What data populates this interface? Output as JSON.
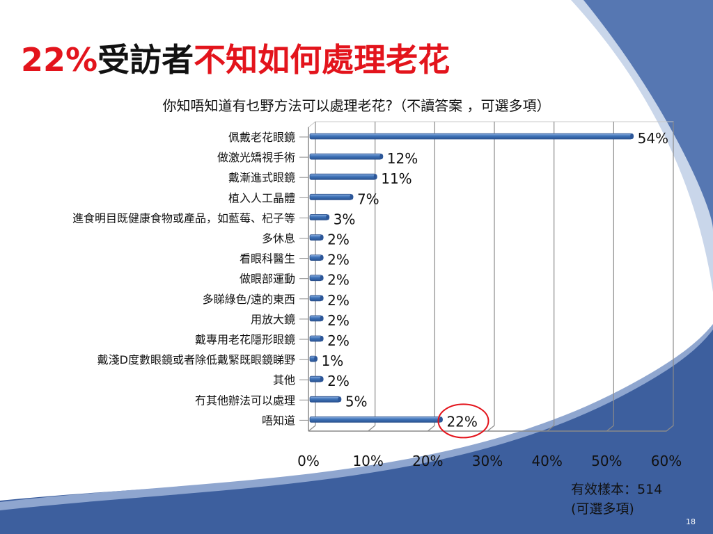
{
  "title": {
    "highlight_pct": "22%",
    "middle": "受訪者",
    "tail": "不知如何處理老花"
  },
  "subtitle": "你知唔知道有乜野方法可以處理老花?（不讀答案 ，可選多項）",
  "footnote": {
    "line1": "有效樣本：514",
    "line2": "(可選多項)"
  },
  "page_number": "18",
  "colors": {
    "title_red": "#e3141c",
    "bar_blue": "#3f73b8",
    "circle_red": "#e3141c",
    "bg_blue": "#3d5f9e"
  },
  "chart_data": {
    "type": "bar",
    "orientation": "horizontal",
    "categories": [
      "佩戴老花眼鏡",
      "做激光矯視手術",
      "戴漸進式眼鏡",
      "植入人工晶體",
      "進食明目既健康食物或產品，如藍莓、杞子等",
      "多休息",
      "看眼科醫生",
      "做眼部運動",
      "多睇綠色/遠的東西",
      "用放大鏡",
      "戴專用老花隱形眼鏡",
      "戴淺D度數眼鏡或者除低戴緊既眼鏡睇野",
      "其他",
      "冇其他辦法可以處理",
      "唔知道"
    ],
    "values": [
      54,
      12,
      11,
      7,
      3,
      2,
      2,
      2,
      2,
      2,
      2,
      1,
      2,
      5,
      22
    ],
    "value_labels": [
      "54%",
      "12%",
      "11%",
      "7%",
      "3%",
      "2%",
      "2%",
      "2%",
      "2%",
      "2%",
      "2%",
      "1%",
      "2%",
      "5%",
      "22%"
    ],
    "xlim": [
      0,
      60
    ],
    "xticks": [
      0,
      10,
      20,
      30,
      40,
      50,
      60
    ],
    "xtick_labels": [
      "0%",
      "10%",
      "20%",
      "30%",
      "40%",
      "50%",
      "60%"
    ],
    "grid": true,
    "legend": "none",
    "highlighted_category": "唔知道"
  }
}
